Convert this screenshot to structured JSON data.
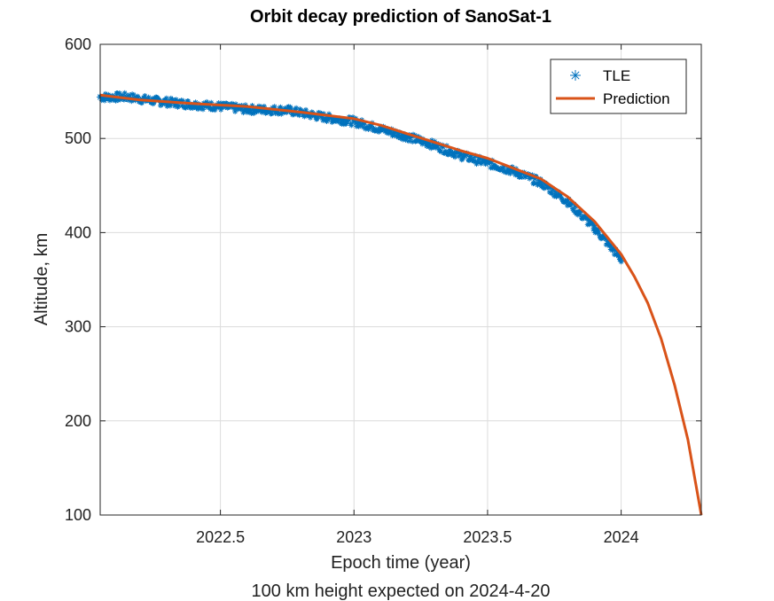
{
  "chart_data": {
    "type": "line",
    "title": "Orbit decay prediction of SanoSat-1",
    "xlabel": "Epoch time (year)",
    "ylabel": "Altitude, km",
    "note": "100 km height expected on 2024-4-20",
    "xlim": [
      2022.05,
      2024.3
    ],
    "ylim": [
      100,
      600
    ],
    "xticks": [
      2022.5,
      2023,
      2023.5,
      2024
    ],
    "xtick_labels": [
      "2022.5",
      "2023",
      "2023.5",
      "2024"
    ],
    "yticks": [
      100,
      200,
      300,
      400,
      500,
      600
    ],
    "ytick_labels": [
      "100",
      "200",
      "300",
      "400",
      "500",
      "600"
    ],
    "grid": true,
    "legend_position": "top-right",
    "series": [
      {
        "name": "TLE",
        "style": "markers",
        "marker": "asterisk",
        "color": "#0072BD",
        "x": [
          2022.05,
          2022.15,
          2022.25,
          2022.4,
          2022.5,
          2022.6,
          2022.75,
          2022.9,
          2023.0,
          2023.1,
          2023.2,
          2023.3,
          2023.4,
          2023.5,
          2023.6,
          2023.7,
          2023.8,
          2023.9,
          2024.0
        ],
        "y": [
          544,
          544,
          540,
          536,
          534,
          531,
          530,
          522,
          518,
          510,
          502,
          493,
          482,
          474,
          465,
          453,
          433,
          405,
          372
        ]
      },
      {
        "name": "Prediction",
        "style": "line",
        "color": "#D95319",
        "x": [
          2022.05,
          2022.2,
          2022.4,
          2022.6,
          2022.8,
          2023.0,
          2023.1,
          2023.2,
          2023.3,
          2023.4,
          2023.5,
          2023.6,
          2023.7,
          2023.8,
          2023.9,
          2024.0,
          2024.05,
          2024.1,
          2024.15,
          2024.2,
          2024.25,
          2024.3
        ],
        "y": [
          546,
          541,
          537,
          534,
          528,
          521,
          514,
          505,
          496,
          487,
          479,
          468,
          457,
          438,
          412,
          377,
          353,
          325,
          287,
          238,
          180,
          100
        ]
      }
    ]
  }
}
